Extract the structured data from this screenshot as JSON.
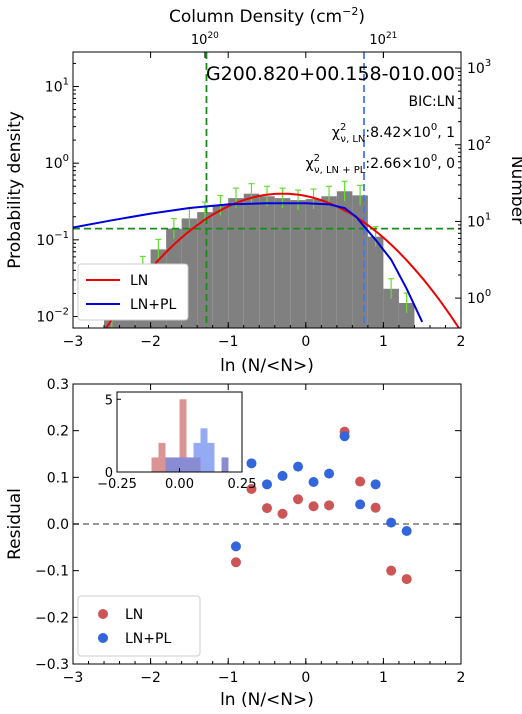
{
  "chart_data": [
    {
      "type": "histogram",
      "title": "G200.820+00.158-010.00",
      "annotation_bic": "BIC:LN",
      "chi_ln": {
        "prefix": "χ",
        "sup": "2",
        "sub": "ν, LN",
        "value": ":8.42×10",
        "exp": "0",
        "suffix": ", 1"
      },
      "chi_lnpl": {
        "prefix": "χ",
        "sup": "2",
        "sub": "ν, LN + PL",
        "value": ":2.66×10",
        "exp": "0",
        "suffix": ", 0"
      },
      "xlabel": "ln (N/<N>)",
      "ylabel": "Probability density",
      "ylabel_right": "Number",
      "top_axis_label": "Column Density (cm",
      "top_axis_label_sup": "−2",
      "top_axis_label_close": ")",
      "top_ticks": [
        {
          "base": "10",
          "exp": "20",
          "x": -1.3
        },
        {
          "base": "10",
          "exp": "21",
          "x": 1.0
        }
      ],
      "xlim": [
        -3,
        2
      ],
      "ylim_log": [
        -2.15,
        1.45
      ],
      "x_ticks": [
        -3,
        -2,
        -1,
        0,
        1,
        2
      ],
      "x_tick_labels": [
        "−3",
        "−2",
        "−1",
        "0",
        "1",
        "2"
      ],
      "y_ticks": [
        {
          "base": "10",
          "exp": "−2",
          "v": -2
        },
        {
          "base": "10",
          "exp": "−1",
          "v": -1
        },
        {
          "base": "10",
          "exp": "0",
          "v": 0
        },
        {
          "base": "10",
          "exp": "1",
          "v": 1
        }
      ],
      "y_ticks_right": [
        {
          "base": "10",
          "exp": "0",
          "v": -1.76
        },
        {
          "base": "10",
          "exp": "1",
          "v": -0.76
        },
        {
          "base": "10",
          "exp": "2",
          "v": 0.24
        },
        {
          "base": "10",
          "exp": "3",
          "v": 1.24
        }
      ],
      "bins": [
        -2.5,
        -2.3,
        -2.1,
        -1.9,
        -1.7,
        -1.5,
        -1.3,
        -1.1,
        -0.9,
        -0.7,
        -0.5,
        -0.3,
        -0.1,
        0.1,
        0.3,
        0.5,
        0.7,
        0.9,
        1.1,
        1.3
      ],
      "bin_width": 0.2,
      "density": [
        0.009,
        0.028,
        0.045,
        0.075,
        0.14,
        0.19,
        0.23,
        0.28,
        0.35,
        0.4,
        0.37,
        0.35,
        0.33,
        0.34,
        0.37,
        0.43,
        0.38,
        0.11,
        0.023,
        0.015
      ],
      "bar_color": "#808080",
      "error_color": "#66dd33",
      "vline_green": -1.28,
      "hline_green": 0.14,
      "vline_blue": 0.75,
      "series": [
        {
          "name": "LN",
          "color": "#ee0000",
          "kind": "lognormal",
          "mu": -0.3,
          "sigma": 0.8,
          "peak": 0.4
        },
        {
          "name": "LN+PL",
          "color": "#0000dd",
          "kind": "lnpl",
          "points": [
            [
              -3.0,
              0.145
            ],
            [
              -2.5,
              0.18
            ],
            [
              -2.0,
              0.22
            ],
            [
              -1.5,
              0.26
            ],
            [
              -1.0,
              0.29
            ],
            [
              -0.5,
              0.3
            ],
            [
              0.0,
              0.3
            ],
            [
              0.3,
              0.29
            ],
            [
              0.5,
              0.26
            ],
            [
              0.65,
              0.2
            ],
            [
              0.75,
              0.15
            ],
            [
              0.9,
              0.1
            ],
            [
              1.1,
              0.055
            ],
            [
              1.3,
              0.023
            ],
            [
              1.5,
              0.0085
            ]
          ]
        }
      ],
      "legend": "lower-left"
    },
    {
      "type": "scatter",
      "xlabel": "ln (N/<N>)",
      "ylabel": "Residual",
      "xlim": [
        -3,
        2
      ],
      "ylim": [
        -0.3,
        0.3
      ],
      "x_ticks": [
        -3,
        -2,
        -1,
        0,
        1,
        2
      ],
      "x_tick_labels": [
        "−3",
        "−2",
        "−1",
        "0",
        "1",
        "2"
      ],
      "y_ticks": [
        -0.3,
        -0.2,
        -0.1,
        0.0,
        0.1,
        0.2,
        0.3
      ],
      "y_tick_labels": [
        "−0.3",
        "−0.2",
        "−0.1",
        "0.0",
        "0.1",
        "0.2",
        "0.3"
      ],
      "series": [
        {
          "name": "LN",
          "color": "#cc5555",
          "x": [
            -0.9,
            -0.7,
            -0.5,
            -0.3,
            -0.1,
            0.1,
            0.3,
            0.5,
            0.7,
            0.9,
            1.1,
            1.3
          ],
          "y": [
            -0.082,
            0.075,
            0.034,
            0.022,
            0.053,
            0.038,
            0.04,
            0.198,
            0.091,
            0.035,
            -0.1,
            -0.118
          ]
        },
        {
          "name": "LN+PL",
          "color": "#3366dd",
          "x": [
            -0.9,
            -0.7,
            -0.5,
            -0.3,
            -0.1,
            0.1,
            0.3,
            0.5,
            0.7,
            0.9,
            1.1,
            1.3
          ],
          "y": [
            -0.048,
            0.13,
            0.085,
            0.103,
            0.123,
            0.09,
            0.108,
            0.188,
            0.042,
            0.085,
            0.003,
            -0.015
          ]
        }
      ],
      "zero_line": 0,
      "legend": "lower-left",
      "inset": {
        "type": "histogram",
        "xlim": [
          -0.25,
          0.25
        ],
        "ylim": [
          0,
          5.5
        ],
        "x_ticks": [
          -0.25,
          0.0,
          0.25
        ],
        "x_tick_labels": [
          "−0.25",
          "0.00",
          "0.25"
        ],
        "y_ticks": [
          0,
          5
        ],
        "y_tick_labels": [
          "0",
          "5"
        ],
        "bin_width": 0.028,
        "series": [
          {
            "name": "LN",
            "color": "#cc6666",
            "bins": [
              -0.098,
              -0.07,
              -0.042,
              -0.014,
              0.014,
              0.042,
              0.07,
              0.098,
              0.126,
              0.154,
              0.182
            ],
            "counts": [
              1,
              2,
              1,
              1,
              5,
              1,
              1,
              0,
              0,
              0,
              1
            ]
          },
          {
            "name": "LN+PL",
            "color": "#6688ee",
            "bins": [
              -0.042,
              -0.014,
              0.014,
              0.042,
              0.07,
              0.098,
              0.126,
              0.154,
              0.182
            ],
            "counts": [
              1,
              1,
              1,
              1,
              2,
              3,
              2,
              0,
              1
            ]
          }
        ]
      }
    }
  ]
}
